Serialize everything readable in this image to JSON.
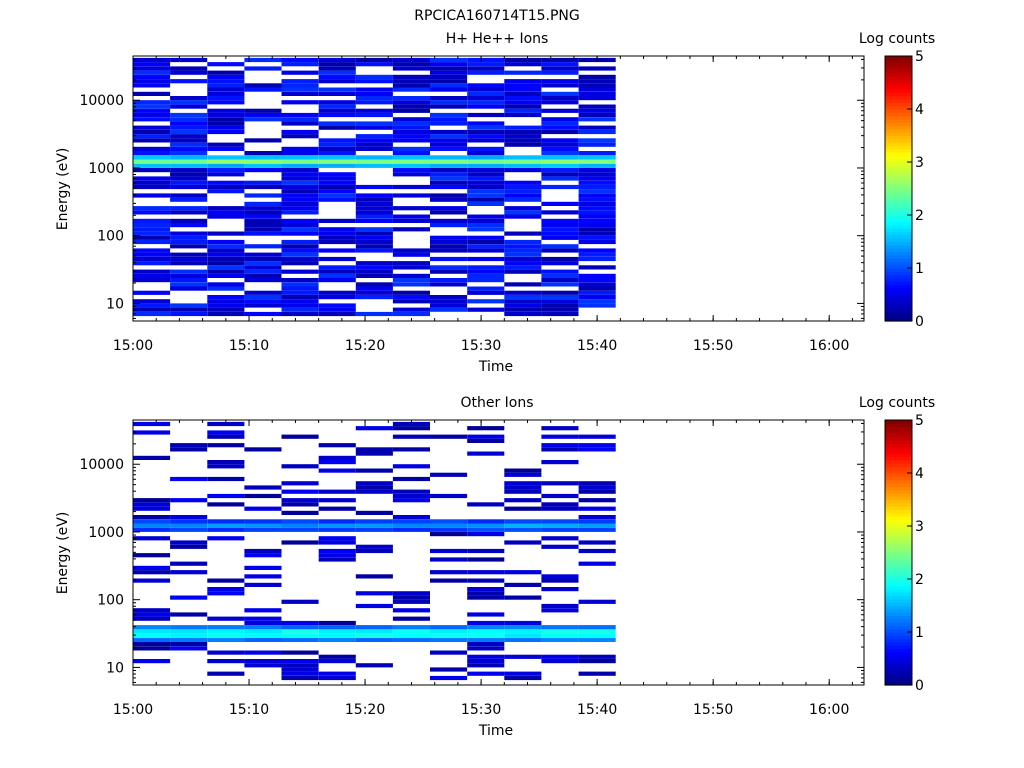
{
  "figure_title": "RPCICA160714T15.PNG",
  "colorbar_stops": [
    "#00007f",
    "#0000ff",
    "#007fff",
    "#00ffff",
    "#7fff7f",
    "#ffff00",
    "#ff7f00",
    "#ff0000",
    "#7f0000"
  ],
  "chart_data": [
    {
      "type": "heatmap",
      "title": "H+ He++ Ions",
      "xlabel": "Time",
      "ylabel": "Energy (eV)",
      "colorbar_label": "Log counts",
      "colorbar_range": [
        0,
        5
      ],
      "colorbar_ticks": [
        "0",
        "1",
        "2",
        "3",
        "4",
        "5"
      ],
      "x_range": [
        "15:00",
        "16:03"
      ],
      "x_ticks": [
        "15:00",
        "15:10",
        "15:20",
        "15:30",
        "15:40",
        "15:50",
        "16:00"
      ],
      "y_scale": "log",
      "y_range": [
        5.5,
        45000
      ],
      "y_ticks": [
        "10",
        "100",
        "1000",
        "10000"
      ],
      "time_bins": [
        "15:00",
        "15:03.2",
        "15:06.4",
        "15:09.6",
        "15:12.8",
        "15:16",
        "15:19.2",
        "15:22.4",
        "15:25.6",
        "15:28.8",
        "15:32",
        "15:35.2",
        "15:38.4"
      ],
      "bins_per_decade": 16,
      "band_peaks": [
        {
          "energy_eV": 1250,
          "log_counts": 2.6,
          "note": "strong band at ~1.2 keV"
        }
      ],
      "background_log_counts": [
        0.2,
        0.9
      ],
      "coverage_end": "15:41.6"
    },
    {
      "type": "heatmap",
      "title": "Other Ions",
      "xlabel": "Time",
      "ylabel": "Energy (eV)",
      "colorbar_label": "Log counts",
      "colorbar_range": [
        0,
        5
      ],
      "colorbar_ticks": [
        "0",
        "1",
        "2",
        "3",
        "4",
        "5"
      ],
      "x_range": [
        "15:00",
        "16:03"
      ],
      "x_ticks": [
        "15:00",
        "15:10",
        "15:20",
        "15:30",
        "15:40",
        "15:50",
        "16:00"
      ],
      "y_scale": "log",
      "y_range": [
        5.5,
        45000
      ],
      "y_ticks": [
        "10",
        "100",
        "1000",
        "10000"
      ],
      "time_bins": [
        "15:00",
        "15:03.2",
        "15:06.4",
        "15:09.6",
        "15:12.8",
        "15:16",
        "15:19.2",
        "15:22.4",
        "15:25.6",
        "15:28.8",
        "15:32",
        "15:35.2",
        "15:38.4"
      ],
      "bins_per_decade": 16,
      "band_peaks": [
        {
          "energy_eV": 1250,
          "log_counts": 1.5,
          "note": "band at ~1.2 keV"
        },
        {
          "energy_eV": 32,
          "log_counts": 2.0,
          "note": "band at ~30 eV"
        }
      ],
      "background_log_counts": [
        0.1,
        0.6
      ],
      "coverage_end": "15:41.6"
    }
  ]
}
